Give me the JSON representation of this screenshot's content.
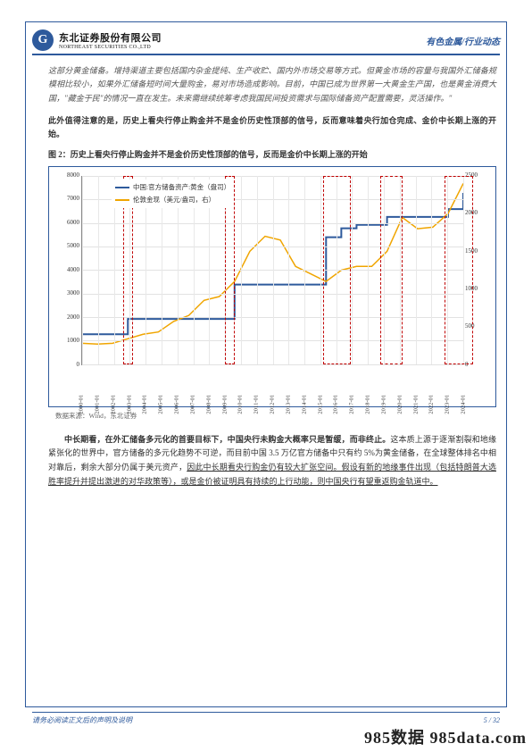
{
  "header": {
    "company_cn": "东北证券股份有限公司",
    "company_en": "NORTHEAST SECURITIES CO.,LTD",
    "logo_initial": "G",
    "right_text": "有色金属/行业动态"
  },
  "paragraphs": {
    "italic": "这部分黄金储备。增持渠道主要包括国内杂金提纯、生产收贮、国内外市场交易等方式。但黄金市场的容量与我国外汇储备规模相比较小，如果外汇储备短时间大量购金，易对市场造成影响。目前，中国已成为世界第一大黄金生产国，也是黄金消费大国，\"藏金于民\"的情况一直在发生。未来需继续统筹考虑我国民间投资需求与国际储备资产配置需要，灵活操作。\"",
    "bold": "此外值得注意的是，历史上看央行停止购金并不是金价历史性顶部的信号，反而意味着央行加仓完成、金价中长期上涨的开始。",
    "fig_caption": "图 2：历史上看央行停止购金并不是金价历史性顶部的信号，反而是金价中长期上涨的开始",
    "data_source": "数据来源：Wind，东北证券",
    "body_pre": "中长期看，在外汇储备多元化的首要目标下，中国央行未购金大概率只是暂缓，而非终止。",
    "body_mid": "这本质上源于逐渐割裂和地缘紧张化的世界中，官方储备的多元化趋势不可逆，而目前中国 3.5 万亿官方储备中只有约 5%为黄金储备，在全球整体排名中相对靠后，剩余大部分仍属于美元资产，",
    "body_u1": "因此中长期看央行购金仍有较大扩张空间。假设有新的地缘事件出现（包括特朗普大选胜率提升并提出激进的对华政策等），或是金价被证明具有持续的上行动能，则中国央行有望重返购金轨道中。"
  },
  "chart": {
    "legend": {
      "series_a": {
        "label": "中国:官方储备资产:黄金（盘司）",
        "color": "#2e5a9c"
      },
      "series_b": {
        "label": "伦敦金现（美元/盎司，右）",
        "color": "#f0a500"
      }
    },
    "y_left": {
      "min": 0,
      "max": 8000,
      "step": 1000,
      "ticks": [
        0,
        1000,
        2000,
        3000,
        4000,
        5000,
        6000,
        7000,
        8000
      ]
    },
    "y_right": {
      "min": 0,
      "max": 2500,
      "step": 500,
      "ticks": [
        0,
        500,
        1000,
        1500,
        2000,
        2500
      ]
    },
    "x_labels": [
      "2000-01",
      "2001-01",
      "2002-01",
      "2003-01",
      "2004-01",
      "2005-01",
      "2006-01",
      "2007-01",
      "2008-01",
      "2009-01",
      "2010-01",
      "2011-01",
      "2012-01",
      "2013-01",
      "2014-01",
      "2015-01",
      "2016-01",
      "2017-01",
      "2018-01",
      "2019-01",
      "2020-01",
      "2021-01",
      "2022-01",
      "2023-01",
      "2024-01"
    ],
    "gold_reserve": [
      1280,
      1280,
      1280,
      1929,
      1929,
      1929,
      1929,
      1929,
      1929,
      1929,
      3389,
      3389,
      3389,
      3389,
      3389,
      3389,
      5400,
      5779,
      5924,
      5924,
      6260,
      6260,
      6260,
      6260,
      6592,
      7280
    ],
    "gold_price": [
      280,
      270,
      280,
      340,
      400,
      430,
      570,
      650,
      850,
      900,
      1100,
      1500,
      1700,
      1650,
      1300,
      1200,
      1100,
      1250,
      1300,
      1300,
      1500,
      1950,
      1800,
      1820,
      2000,
      2400
    ],
    "red_boxes": [
      {
        "x0_idx": 2.6,
        "x1_idx": 3.2
      },
      {
        "x0_idx": 9.0,
        "x1_idx": 9.6
      },
      {
        "x0_idx": 15.2,
        "x1_idx": 16.9
      },
      {
        "x0_idx": 18.8,
        "x1_idx": 20.2
      },
      {
        "x0_idx": 22.8,
        "x1_idx": 24.6
      }
    ],
    "background_color": "#ffffff",
    "grid_color": "#e2e2e2",
    "border_color": "#2e5a9c",
    "axis_font_size": 7
  },
  "footer": {
    "left": "请务必阅读正文后的声明及说明",
    "right": "5 / 32"
  },
  "watermark": "985数据 985data.com"
}
